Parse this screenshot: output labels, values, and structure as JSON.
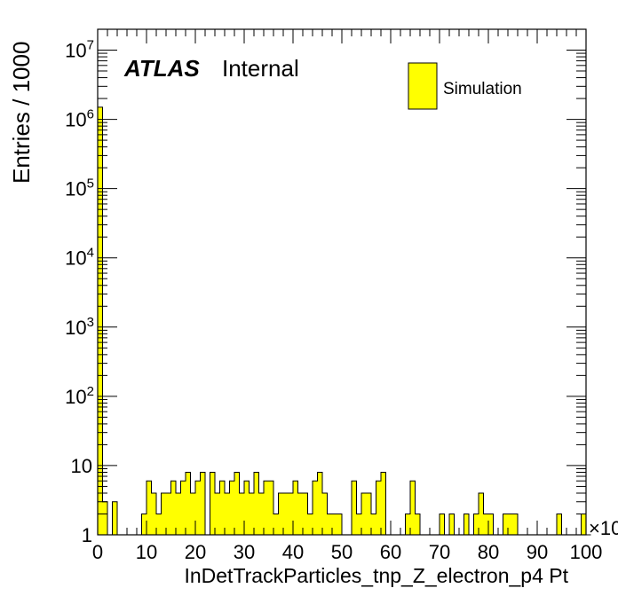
{
  "chart_data": {
    "type": "bar",
    "title": "",
    "xlabel": "InDetTrackParticles_tnp_Z_electron_p4 Pt",
    "ylabel": "Entries / 1000",
    "x_multiplier_label": "×10",
    "x_range": [
      0,
      100
    ],
    "xlim": [
      0,
      100
    ],
    "ylim": [
      1,
      20000000
    ],
    "y_scale": "log",
    "grid": false,
    "legend_position": "top-right",
    "x_ticks": [
      "0",
      "10",
      "20",
      "30",
      "40",
      "50",
      "60",
      "70",
      "80",
      "90",
      "100"
    ],
    "y_ticks": [
      {
        "value": 1,
        "base": "1",
        "exp": ""
      },
      {
        "value": 10,
        "base": "10",
        "exp": ""
      },
      {
        "value": 100,
        "base": "10",
        "exp": "2"
      },
      {
        "value": 1000,
        "base": "10",
        "exp": "3"
      },
      {
        "value": 10000,
        "base": "10",
        "exp": "4"
      },
      {
        "value": 100000,
        "base": "10",
        "exp": "5"
      },
      {
        "value": 1000000,
        "base": "10",
        "exp": "6"
      },
      {
        "value": 10000000,
        "base": "10",
        "exp": "7"
      }
    ],
    "bin_width": 1,
    "series": [
      {
        "name": "Simulation",
        "color": "#ffff00",
        "edge_color": "#000000",
        "values": [
          1500000,
          3,
          1,
          3,
          1,
          1,
          1,
          1,
          1,
          2,
          6,
          4,
          2,
          4,
          4,
          6,
          4,
          6,
          8,
          4,
          6,
          8,
          1,
          8,
          4,
          6,
          4,
          6,
          8,
          4,
          6,
          4,
          8,
          4,
          6,
          6,
          2,
          4,
          4,
          4,
          6,
          4,
          4,
          2,
          6,
          8,
          4,
          2,
          2,
          2,
          1,
          1,
          6,
          2,
          4,
          4,
          2,
          6,
          8,
          1,
          1,
          1,
          1,
          2,
          6,
          2,
          1,
          1,
          1,
          1,
          2,
          1,
          2,
          1,
          1,
          2,
          1,
          2,
          4,
          2,
          2,
          1,
          1,
          2,
          2,
          2,
          1,
          1,
          1,
          1,
          1,
          1,
          1,
          1,
          2,
          1,
          1,
          1,
          1,
          2,
          1
        ]
      }
    ],
    "annotations": [
      {
        "text": "ATLAS",
        "style": "bold-italic"
      },
      {
        "text": "Internal",
        "style": "normal"
      }
    ]
  }
}
